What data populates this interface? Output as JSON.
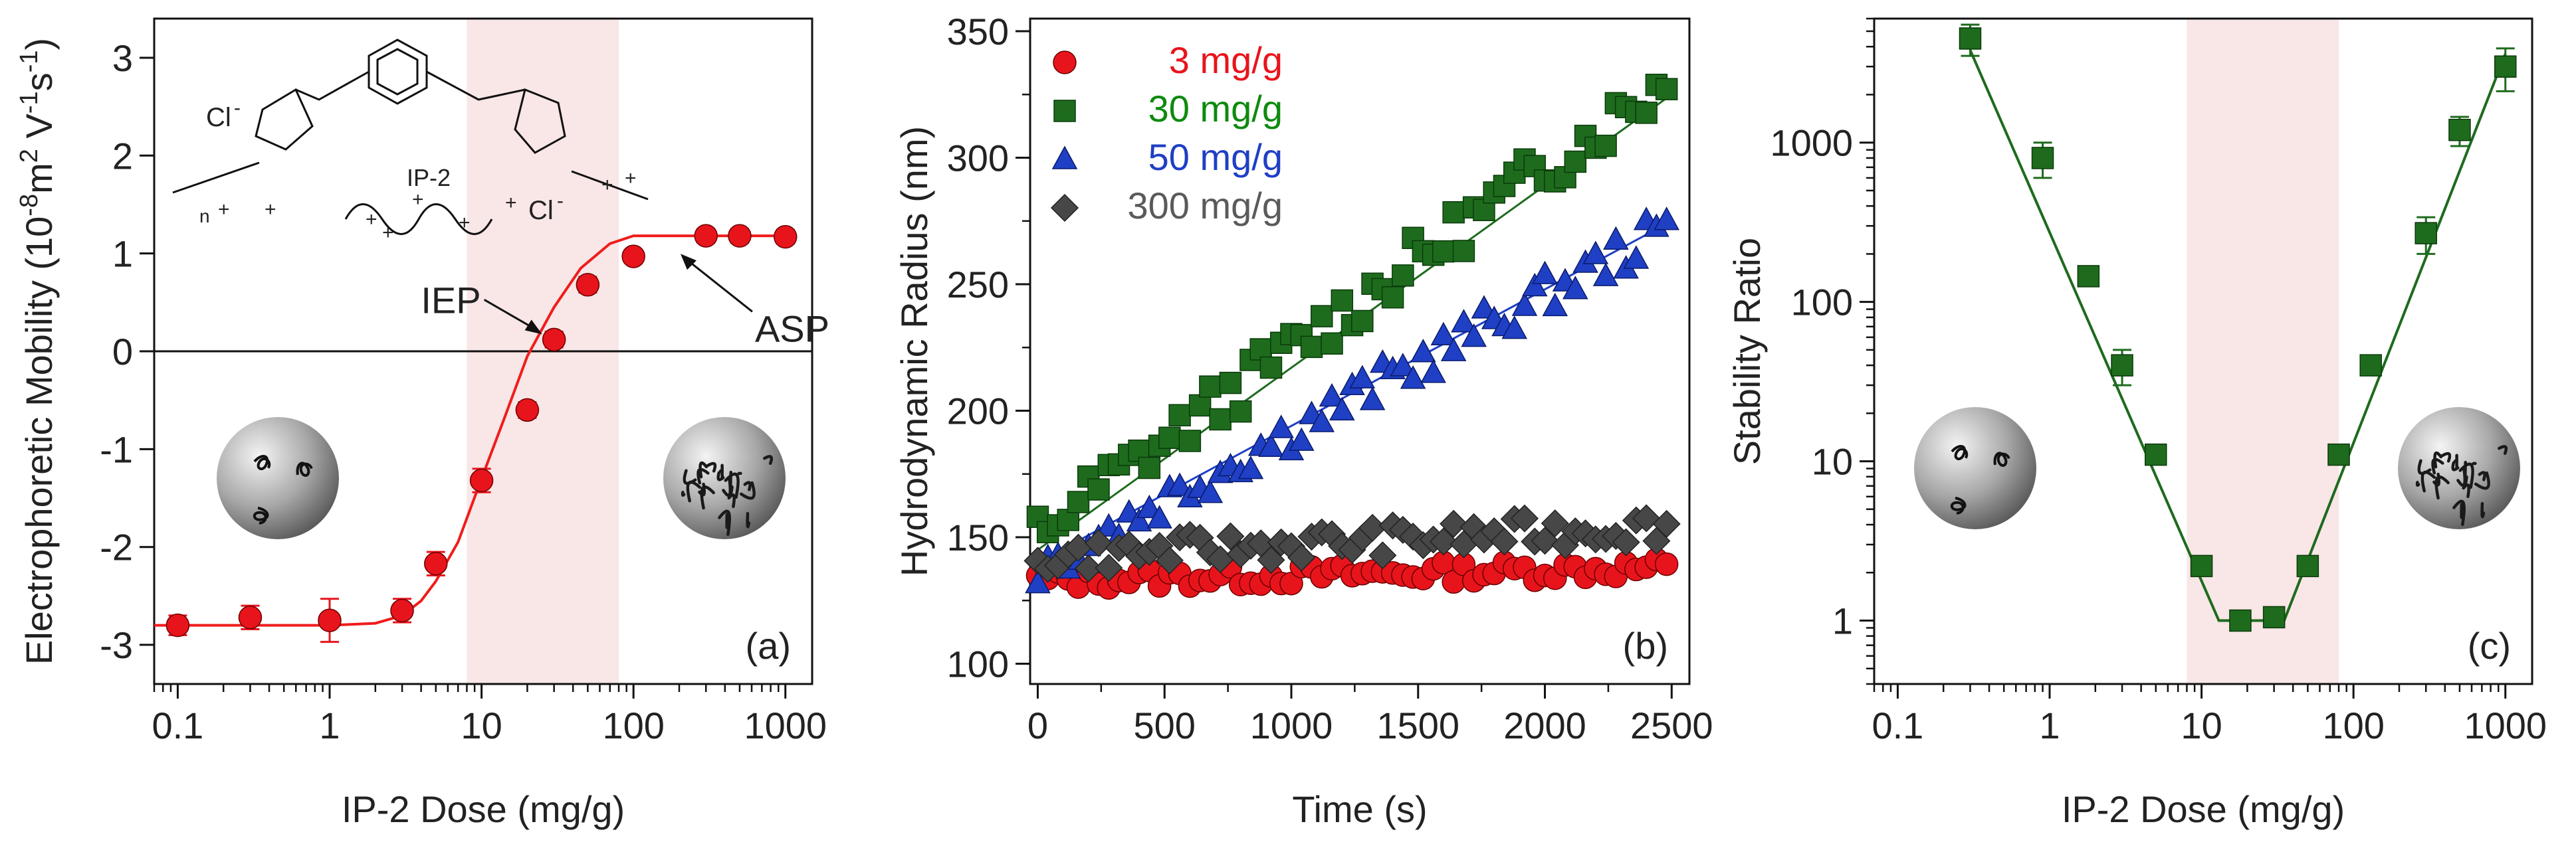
{
  "chart_data": [
    {
      "type": "scatter",
      "panel_label": "(a)",
      "xlabel": "IP-2 Dose (mg/g)",
      "ylabel_parts": [
        "Electrophoretic Mobility (10",
        "-8",
        "m",
        "2",
        " V",
        "-1",
        "s",
        "-1",
        ")"
      ],
      "x_scale": "log",
      "xlim": [
        0.07,
        1500
      ],
      "ylim": [
        -3.4,
        3.4
      ],
      "x_ticks": [
        0.1,
        1,
        10,
        100,
        1000
      ],
      "x_tick_labels": [
        "0.1",
        "1",
        "10",
        "100",
        "1000"
      ],
      "y_ticks": [
        -3,
        -2,
        -1,
        0,
        1,
        2,
        3
      ],
      "y_tick_labels": [
        "-3",
        "-2",
        "-1",
        "0",
        "1",
        "2",
        "3"
      ],
      "shaded_region_x": [
        8,
        80
      ],
      "zero_line": 0,
      "marker_color": "#e8141c",
      "line_color": "#f01c1c",
      "series": [
        {
          "marker": "circle",
          "points": [
            {
              "x": 0.1,
              "y": -2.8,
              "err": 0.1
            },
            {
              "x": 0.3,
              "y": -2.72,
              "err": 0.12
            },
            {
              "x": 1,
              "y": -2.75,
              "err": 0.22
            },
            {
              "x": 3,
              "y": -2.65,
              "err": 0.12
            },
            {
              "x": 5,
              "y": -2.17,
              "err": 0.12
            },
            {
              "x": 10,
              "y": -1.32,
              "err": 0.12
            },
            {
              "x": 20,
              "y": -0.6,
              "err": 0.08
            },
            {
              "x": 30,
              "y": 0.12,
              "err": 0.08
            },
            {
              "x": 50,
              "y": 0.68,
              "err": 0.08
            },
            {
              "x": 100,
              "y": 0.97,
              "err": 0.06
            },
            {
              "x": 300,
              "y": 1.18,
              "err": 0.07
            },
            {
              "x": 500,
              "y": 1.18,
              "err": 0.07
            },
            {
              "x": 1000,
              "y": 1.17,
              "err": 0.07
            }
          ],
          "fit": [
            [
              0.07,
              -2.8
            ],
            [
              1,
              -2.8
            ],
            [
              2,
              -2.78
            ],
            [
              3,
              -2.7
            ],
            [
              4,
              -2.55
            ],
            [
              5,
              -2.35
            ],
            [
              7,
              -1.95
            ],
            [
              10,
              -1.3
            ],
            [
              14,
              -0.7
            ],
            [
              20,
              -0.05
            ],
            [
              30,
              0.45
            ],
            [
              45,
              0.85
            ],
            [
              70,
              1.1
            ],
            [
              100,
              1.18
            ],
            [
              1000,
              1.18
            ]
          ]
        }
      ],
      "annotations": [
        "IEP",
        "ASP"
      ],
      "structure_labels": [
        "Cl",
        "-",
        "Cl",
        "-",
        "IP-2",
        "+",
        "n"
      ]
    },
    {
      "type": "scatter",
      "panel_label": "(b)",
      "xlabel": "Time (s)",
      "ylabel": "Hydrodynamic Radius (nm)",
      "xlim": [
        -30,
        2570
      ],
      "ylim": [
        92,
        355
      ],
      "x_ticks": [
        0,
        500,
        1000,
        1500,
        2000,
        2500
      ],
      "x_tick_labels": [
        "0",
        "500",
        "1000",
        "1500",
        "2000",
        "2500"
      ],
      "y_ticks": [
        100,
        150,
        200,
        250,
        300,
        350
      ],
      "y_tick_labels": [
        "100",
        "150",
        "200",
        "250",
        "300",
        "350"
      ],
      "series": [
        {
          "name": "3 mg/g",
          "color": "#e8141c",
          "label_color": "#e8141c",
          "marker": "circle",
          "y0": 133,
          "slope": 0.002,
          "noise": 4,
          "fit": null
        },
        {
          "name": "30 mg/g",
          "color": "#1e6b1e",
          "label_color": "#0e8a0e",
          "marker": "square",
          "y0": 152,
          "slope": 0.072,
          "noise": 10,
          "fit": [
            [
              0,
              145
            ],
            [
              2500,
              325
            ]
          ]
        },
        {
          "name": "50 mg/g",
          "color": "#1f3fc4",
          "label_color": "#1f3fc4",
          "marker": "triangle",
          "y0": 138,
          "slope": 0.054,
          "noise": 8,
          "fit": [
            [
              0,
              140
            ],
            [
              2500,
              275
            ]
          ]
        },
        {
          "name": "300 mg/g",
          "color": "#474747",
          "label_color": "#5a5a5a",
          "marker": "diamond",
          "y0": 142,
          "slope": 0.005,
          "noise": 6,
          "fit": null
        }
      ],
      "time_step": 40
    },
    {
      "type": "scatter",
      "panel_label": "(c)",
      "xlabel": "IP-2 Dose (mg/g)",
      "ylabel": "Stability Ratio",
      "x_scale": "log",
      "y_scale": "log",
      "xlim": [
        0.07,
        1500
      ],
      "ylim": [
        0.4,
        6000
      ],
      "x_ticks": [
        0.1,
        1,
        10,
        100,
        1000
      ],
      "x_tick_labels": [
        "0.1",
        "1",
        "10",
        "100",
        "1000"
      ],
      "y_ticks": [
        1,
        10,
        100,
        1000
      ],
      "y_tick_labels": [
        "1",
        "10",
        "100",
        "1000"
      ],
      "shaded_region_x": [
        8,
        80
      ],
      "marker_color": "#1e6b1e",
      "series": [
        {
          "marker": "square",
          "points": [
            {
              "x": 0.3,
              "y": 4500,
              "err_lo": 3500,
              "err_hi": 5500
            },
            {
              "x": 0.9,
              "y": 800,
              "err_lo": 600,
              "err_hi": 1000
            },
            {
              "x": 1.8,
              "y": 145,
              "err_lo": 130,
              "err_hi": 160
            },
            {
              "x": 3,
              "y": 40,
              "err_lo": 30,
              "err_hi": 50
            },
            {
              "x": 5,
              "y": 11,
              "err_lo": 10,
              "err_hi": 12
            },
            {
              "x": 10,
              "y": 2.2,
              "err_lo": 2.0,
              "err_hi": 2.4
            },
            {
              "x": 18,
              "y": 1.0,
              "err_lo": 0.95,
              "err_hi": 1.05
            },
            {
              "x": 30,
              "y": 1.05,
              "err_lo": 0.95,
              "err_hi": 1.15
            },
            {
              "x": 50,
              "y": 2.2,
              "err_lo": 2.0,
              "err_hi": 2.4
            },
            {
              "x": 80,
              "y": 11,
              "err_lo": 10,
              "err_hi": 12
            },
            {
              "x": 130,
              "y": 40,
              "err_lo": 35,
              "err_hi": 45
            },
            {
              "x": 300,
              "y": 270,
              "err_lo": 200,
              "err_hi": 340
            },
            {
              "x": 500,
              "y": 1200,
              "err_lo": 950,
              "err_hi": 1450
            },
            {
              "x": 1000,
              "y": 3000,
              "err_lo": 2100,
              "err_hi": 3900
            }
          ],
          "fit": [
            [
              0.3,
              3800
            ],
            [
              13,
              1
            ],
            [
              35,
              1
            ],
            [
              1000,
              3600
            ]
          ]
        }
      ]
    }
  ]
}
